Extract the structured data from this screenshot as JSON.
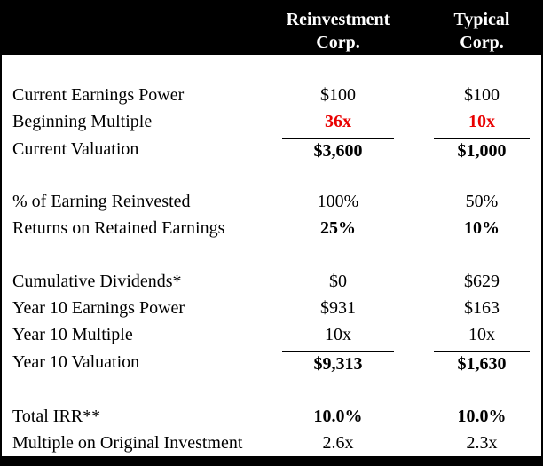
{
  "table": {
    "header": {
      "columns": [
        {
          "name": "Reinvestment Corp.",
          "line1": "Reinvestment",
          "line2": "Corp."
        },
        {
          "name": "Typical Corp.",
          "line1": "Typical",
          "line2": "Corp."
        }
      ]
    },
    "rows": [
      {
        "label": "Current Earnings Power",
        "reinvestment": "$100",
        "typical": "$100",
        "emphasis": "none"
      },
      {
        "label": "Beginning Multiple",
        "reinvestment": "36x",
        "typical": "10x",
        "emphasis": "bold-red"
      },
      {
        "label": "Current Valuation",
        "reinvestment": "$3,600",
        "typical": "$1,000",
        "emphasis": "bold",
        "rule_above_values": true
      },
      {
        "label": "% of Earning Reinvested",
        "reinvestment": "100%",
        "typical": "50%",
        "emphasis": "none"
      },
      {
        "label": "Returns on Retained Earnings",
        "reinvestment": "25%",
        "typical": "10%",
        "emphasis": "bold"
      },
      {
        "label": "Cumulative Dividends*",
        "reinvestment": "$0",
        "typical": "$629",
        "emphasis": "none"
      },
      {
        "label": "Year 10 Earnings Power",
        "reinvestment": "$931",
        "typical": "$163",
        "emphasis": "none"
      },
      {
        "label": "Year 10 Multiple",
        "reinvestment": "10x",
        "typical": "10x",
        "emphasis": "none"
      },
      {
        "label": "Year 10 Valuation",
        "reinvestment": "$9,313",
        "typical": "$1,630",
        "emphasis": "bold",
        "rule_above_values": true
      },
      {
        "label": "Total IRR**",
        "reinvestment": "10.0%",
        "typical": "10.0%",
        "emphasis": "bold"
      },
      {
        "label": "Multiple on Original Investment",
        "reinvestment": "2.6x",
        "typical": "2.3x",
        "emphasis": "none"
      }
    ]
  },
  "colors": {
    "header_background": "#000000",
    "header_text": "#ffffff",
    "body_text": "#000000",
    "highlight_red": "#e90000",
    "rule_line": "#000000",
    "background": "#ffffff"
  }
}
